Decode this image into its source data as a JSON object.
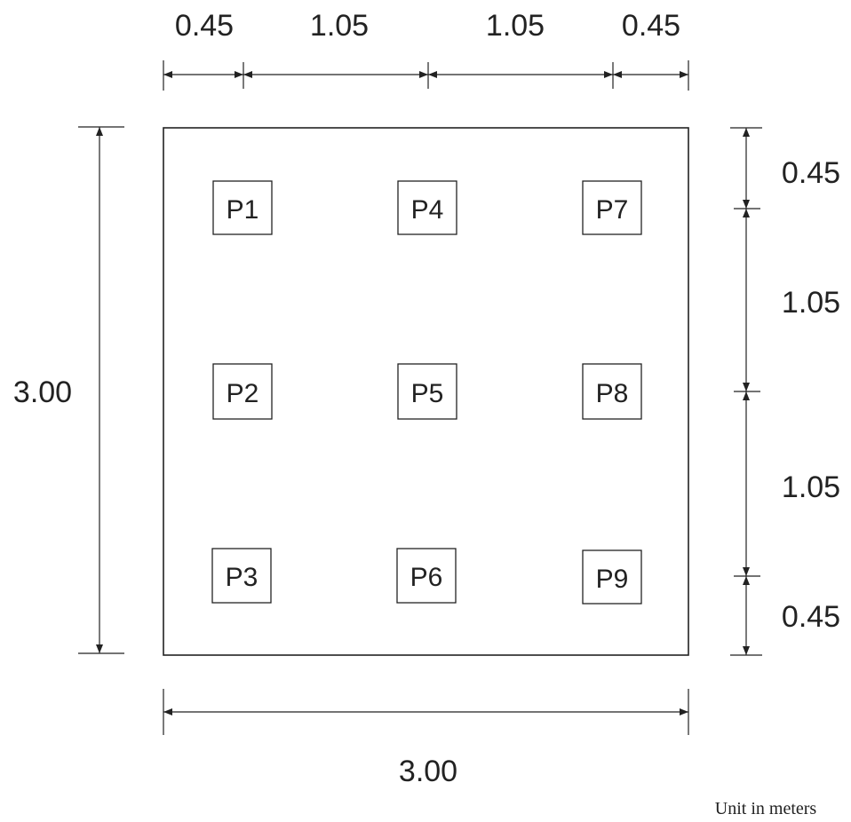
{
  "top_dimensions": [
    "0.45",
    "1.05",
    "1.05",
    "0.45"
  ],
  "right_dimensions": [
    "0.45",
    "1.05",
    "1.05",
    "0.45"
  ],
  "left_dimension": "3.00",
  "bottom_dimension": "3.00",
  "piles": [
    "P1",
    "P2",
    "P3",
    "P4",
    "P5",
    "P6",
    "P7",
    "P8",
    "P9"
  ],
  "unit_note": "Unit in meters",
  "colors": {
    "line": "#222222",
    "background": "#ffffff"
  }
}
